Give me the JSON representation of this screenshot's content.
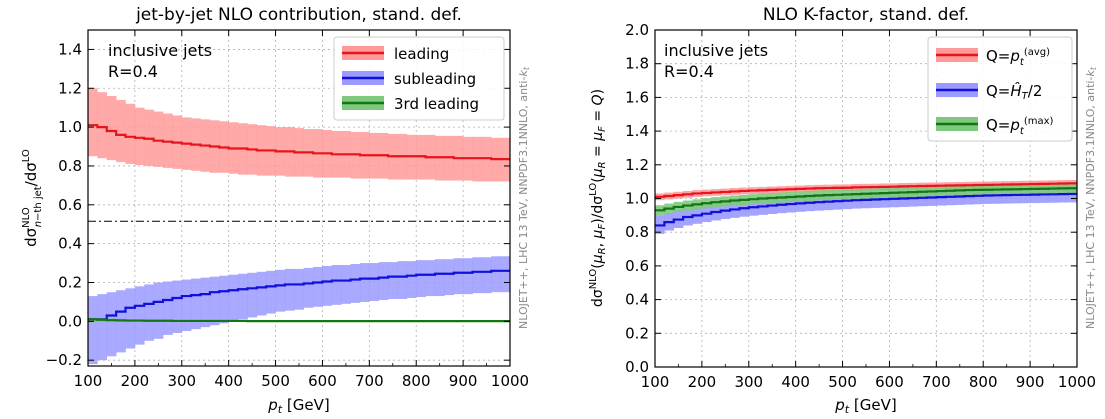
{
  "chart_data": [
    {
      "type": "line",
      "title": "jet-by-jet NLO contribution, stand. def.",
      "xlabel": "p_t [GeV]",
      "ylabel": "dσ^NLO_n−th jet/dσ^LO",
      "xlim": [
        100,
        1000
      ],
      "ylim": [
        -0.23,
        1.5
      ],
      "xticks": [
        "100",
        "200",
        "300",
        "400",
        "500",
        "600",
        "700",
        "800",
        "900",
        "1000"
      ],
      "yticks": [
        "−0.2",
        "0.0",
        "0.2",
        "0.4",
        "0.6",
        "0.8",
        "1.0",
        "1.2",
        "1.4"
      ],
      "grid": true,
      "legend_position": "top-right",
      "annotation": [
        "inclusive jets",
        "R=0.4"
      ],
      "side_label": "NLOJET++, LHC 13 TeV, NNPDF3.1NNLO, anti-k_t",
      "reference_line": 0.5,
      "x_edges": [
        100,
        120,
        140,
        160,
        180,
        200,
        220,
        240,
        260,
        280,
        300,
        320,
        340,
        360,
        380,
        400,
        420,
        440,
        460,
        480,
        500,
        520,
        540,
        560,
        580,
        600,
        620,
        640,
        660,
        680,
        700,
        720,
        740,
        760,
        780,
        800,
        820,
        840,
        860,
        880,
        900,
        920,
        940,
        960,
        980,
        1000
      ],
      "series": [
        {
          "name": "leading",
          "color": "#e8141b",
          "band": "#ff9a9a",
          "values": [
            1.01,
            1.0,
            0.98,
            0.96,
            0.95,
            0.945,
            0.94,
            0.93,
            0.925,
            0.92,
            0.915,
            0.91,
            0.905,
            0.9,
            0.895,
            0.89,
            0.89,
            0.885,
            0.88,
            0.88,
            0.875,
            0.875,
            0.87,
            0.87,
            0.865,
            0.865,
            0.86,
            0.86,
            0.86,
            0.855,
            0.855,
            0.855,
            0.85,
            0.85,
            0.85,
            0.85,
            0.845,
            0.845,
            0.845,
            0.84,
            0.84,
            0.84,
            0.84,
            0.835,
            0.835
          ],
          "lower": [
            0.85,
            0.84,
            0.83,
            0.82,
            0.81,
            0.805,
            0.8,
            0.795,
            0.79,
            0.785,
            0.78,
            0.775,
            0.77,
            0.765,
            0.765,
            0.76,
            0.755,
            0.755,
            0.75,
            0.75,
            0.75,
            0.745,
            0.745,
            0.745,
            0.74,
            0.74,
            0.74,
            0.74,
            0.735,
            0.735,
            0.735,
            0.735,
            0.73,
            0.73,
            0.73,
            0.73,
            0.73,
            0.725,
            0.725,
            0.725,
            0.725,
            0.72,
            0.72,
            0.72,
            0.72
          ],
          "upper": [
            1.2,
            1.18,
            1.16,
            1.14,
            1.12,
            1.1,
            1.09,
            1.08,
            1.07,
            1.06,
            1.05,
            1.045,
            1.04,
            1.035,
            1.03,
            1.025,
            1.02,
            1.015,
            1.01,
            1.005,
            1.0,
            1.0,
            0.995,
            0.99,
            0.99,
            0.985,
            0.98,
            0.98,
            0.975,
            0.975,
            0.97,
            0.97,
            0.965,
            0.965,
            0.96,
            0.96,
            0.96,
            0.955,
            0.955,
            0.955,
            0.95,
            0.95,
            0.95,
            0.945,
            0.945
          ]
        },
        {
          "name": "subleading",
          "color": "#1010d8",
          "band": "#9a9aff",
          "values": [
            0.01,
            0.01,
            0.03,
            0.05,
            0.07,
            0.08,
            0.09,
            0.1,
            0.11,
            0.12,
            0.13,
            0.135,
            0.14,
            0.15,
            0.155,
            0.16,
            0.165,
            0.17,
            0.175,
            0.18,
            0.185,
            0.19,
            0.19,
            0.195,
            0.2,
            0.205,
            0.21,
            0.21,
            0.215,
            0.22,
            0.22,
            0.225,
            0.23,
            0.23,
            0.235,
            0.24,
            0.24,
            0.245,
            0.245,
            0.25,
            0.25,
            0.255,
            0.255,
            0.26,
            0.26
          ],
          "lower": [
            -0.22,
            -0.2,
            -0.18,
            -0.16,
            -0.14,
            -0.12,
            -0.1,
            -0.09,
            -0.07,
            -0.06,
            -0.05,
            -0.04,
            -0.03,
            -0.02,
            -0.01,
            0.0,
            0.01,
            0.02,
            0.03,
            0.04,
            0.05,
            0.055,
            0.06,
            0.07,
            0.075,
            0.08,
            0.085,
            0.09,
            0.095,
            0.1,
            0.105,
            0.11,
            0.115,
            0.115,
            0.12,
            0.125,
            0.13,
            0.13,
            0.135,
            0.14,
            0.14,
            0.145,
            0.145,
            0.15,
            0.15
          ],
          "upper": [
            0.13,
            0.14,
            0.15,
            0.16,
            0.17,
            0.18,
            0.19,
            0.2,
            0.205,
            0.21,
            0.215,
            0.22,
            0.225,
            0.23,
            0.235,
            0.24,
            0.245,
            0.25,
            0.255,
            0.26,
            0.265,
            0.27,
            0.27,
            0.275,
            0.28,
            0.285,
            0.29,
            0.29,
            0.295,
            0.3,
            0.3,
            0.305,
            0.305,
            0.31,
            0.31,
            0.315,
            0.315,
            0.32,
            0.32,
            0.325,
            0.325,
            0.33,
            0.33,
            0.335,
            0.335
          ]
        },
        {
          "name": "3rd leading",
          "color": "#117711",
          "band": "#7fc97f",
          "values": [
            0.01,
            0.008,
            0.006,
            0.005,
            0.004,
            0.004,
            0.003,
            0.003,
            0.003,
            0.002,
            0.002,
            0.002,
            0.002,
            0.002,
            0.002,
            0.002,
            0.002,
            0.001,
            0.001,
            0.001,
            0.001,
            0.001,
            0.001,
            0.001,
            0.001,
            0.001,
            0.001,
            0.001,
            0.001,
            0.001,
            0.001,
            0.001,
            0.001,
            0.001,
            0.001,
            0.001,
            0.001,
            0.001,
            0.001,
            0.001,
            0.001,
            0.001,
            0.001,
            0.001,
            0.001
          ],
          "lower": [
            -0.005,
            -0.004,
            -0.003,
            -0.003,
            -0.003,
            -0.002,
            -0.002,
            -0.002,
            -0.002,
            -0.002,
            -0.002,
            -0.002,
            -0.002,
            -0.002,
            -0.002,
            -0.002,
            -0.002,
            -0.002,
            -0.002,
            -0.002,
            -0.002,
            -0.002,
            -0.002,
            -0.002,
            -0.002,
            -0.002,
            -0.002,
            -0.002,
            -0.002,
            -0.002,
            -0.002,
            -0.002,
            -0.002,
            -0.002,
            -0.002,
            -0.002,
            -0.002,
            -0.002,
            -0.002,
            -0.002,
            -0.002,
            -0.002,
            -0.002,
            -0.002,
            -0.002
          ],
          "upper": [
            0.02,
            0.018,
            0.015,
            0.012,
            0.01,
            0.009,
            0.008,
            0.007,
            0.006,
            0.006,
            0.005,
            0.005,
            0.005,
            0.004,
            0.004,
            0.004,
            0.004,
            0.004,
            0.004,
            0.004,
            0.004,
            0.004,
            0.004,
            0.004,
            0.004,
            0.004,
            0.004,
            0.004,
            0.004,
            0.004,
            0.004,
            0.004,
            0.004,
            0.004,
            0.004,
            0.004,
            0.004,
            0.004,
            0.004,
            0.004,
            0.004,
            0.004,
            0.004,
            0.004,
            0.004
          ]
        }
      ]
    },
    {
      "type": "line",
      "title": "NLO K-factor, stand. def.",
      "xlabel": "p_t [GeV]",
      "ylabel": "dσ^NLO(μR, μF)/dσ^LO(μR = μF = Q)",
      "xlim": [
        100,
        1000
      ],
      "ylim": [
        0.0,
        2.0
      ],
      "xticks": [
        "100",
        "200",
        "300",
        "400",
        "500",
        "600",
        "700",
        "800",
        "900",
        "1000"
      ],
      "yticks": [
        "0.0",
        "0.2",
        "0.4",
        "0.6",
        "0.8",
        "1.0",
        "1.2",
        "1.4",
        "1.6",
        "1.8",
        "2.0"
      ],
      "grid": true,
      "legend_position": "top-right",
      "annotation": [
        "inclusive jets",
        "R=0.4"
      ],
      "side_label": "NLOJET++, LHC 13 TeV, NNPDF3.1NNLO, anti-k_t",
      "x_edges": [
        100,
        120,
        140,
        160,
        180,
        200,
        220,
        240,
        260,
        280,
        300,
        320,
        340,
        360,
        380,
        400,
        420,
        440,
        460,
        480,
        500,
        520,
        540,
        560,
        580,
        600,
        620,
        640,
        660,
        680,
        700,
        720,
        740,
        760,
        780,
        800,
        820,
        840,
        860,
        880,
        900,
        920,
        940,
        960,
        980,
        1000
      ],
      "series": [
        {
          "name": "Q=p_t^(avg)",
          "color": "#e8141b",
          "band": "#ff9a9a",
          "values": [
            1.01,
            1.015,
            1.02,
            1.025,
            1.03,
            1.033,
            1.036,
            1.039,
            1.042,
            1.045,
            1.047,
            1.049,
            1.051,
            1.053,
            1.055,
            1.057,
            1.059,
            1.061,
            1.062,
            1.063,
            1.064,
            1.066,
            1.067,
            1.068,
            1.069,
            1.07,
            1.072,
            1.073,
            1.074,
            1.075,
            1.076,
            1.077,
            1.078,
            1.079,
            1.08,
            1.081,
            1.082,
            1.083,
            1.084,
            1.085,
            1.086,
            1.087,
            1.088,
            1.089,
            1.09
          ],
          "lower": [
            0.99,
            0.995,
            1.0,
            1.005,
            1.01,
            1.013,
            1.016,
            1.019,
            1.022,
            1.025,
            1.027,
            1.029,
            1.031,
            1.033,
            1.035,
            1.037,
            1.039,
            1.041,
            1.042,
            1.043,
            1.044,
            1.046,
            1.047,
            1.048,
            1.049,
            1.05,
            1.052,
            1.053,
            1.054,
            1.055,
            1.056,
            1.057,
            1.058,
            1.059,
            1.06,
            1.061,
            1.062,
            1.063,
            1.064,
            1.065,
            1.066,
            1.067,
            1.068,
            1.069,
            1.07
          ],
          "upper": [
            1.03,
            1.035,
            1.04,
            1.045,
            1.05,
            1.053,
            1.056,
            1.059,
            1.062,
            1.065,
            1.067,
            1.069,
            1.071,
            1.073,
            1.075,
            1.077,
            1.079,
            1.081,
            1.082,
            1.083,
            1.084,
            1.086,
            1.087,
            1.088,
            1.089,
            1.09,
            1.092,
            1.093,
            1.094,
            1.095,
            1.096,
            1.097,
            1.098,
            1.099,
            1.1,
            1.101,
            1.102,
            1.103,
            1.104,
            1.105,
            1.106,
            1.107,
            1.108,
            1.109,
            1.11
          ]
        },
        {
          "name": "Q=Ĥ_T/2",
          "color": "#1010d8",
          "band": "#9a9aff",
          "values": [
            0.84,
            0.86,
            0.875,
            0.89,
            0.9,
            0.91,
            0.92,
            0.928,
            0.935,
            0.942,
            0.948,
            0.953,
            0.958,
            0.963,
            0.967,
            0.971,
            0.975,
            0.978,
            0.981,
            0.984,
            0.987,
            0.99,
            0.992,
            0.994,
            0.996,
            0.998,
            1.0,
            1.002,
            1.004,
            1.006,
            1.008,
            1.01,
            1.012,
            1.014,
            1.016,
            1.018,
            1.019,
            1.02,
            1.021,
            1.022,
            1.023,
            1.024,
            1.025,
            1.026,
            1.027
          ],
          "lower": [
            0.79,
            0.81,
            0.825,
            0.84,
            0.85,
            0.86,
            0.87,
            0.878,
            0.885,
            0.892,
            0.898,
            0.903,
            0.908,
            0.913,
            0.917,
            0.921,
            0.925,
            0.928,
            0.931,
            0.934,
            0.937,
            0.94,
            0.942,
            0.944,
            0.946,
            0.948,
            0.95,
            0.952,
            0.954,
            0.956,
            0.958,
            0.96,
            0.962,
            0.964,
            0.966,
            0.968,
            0.969,
            0.97,
            0.971,
            0.972,
            0.973,
            0.974,
            0.975,
            0.976,
            0.977
          ],
          "upper": [
            0.9,
            0.915,
            0.93,
            0.94,
            0.95,
            0.958,
            0.965,
            0.972,
            0.978,
            0.984,
            0.989,
            0.994,
            0.998,
            1.002,
            1.006,
            1.009,
            1.012,
            1.015,
            1.018,
            1.021,
            1.024,
            1.026,
            1.028,
            1.03,
            1.032,
            1.034,
            1.036,
            1.038,
            1.04,
            1.042,
            1.044,
            1.045,
            1.046,
            1.047,
            1.048,
            1.049,
            1.05,
            1.051,
            1.052,
            1.053,
            1.054,
            1.055,
            1.056,
            1.057,
            1.058
          ]
        },
        {
          "name": "Q=p_t^(max)",
          "color": "#117711",
          "band": "#7fc97f",
          "values": [
            0.93,
            0.94,
            0.95,
            0.958,
            0.965,
            0.972,
            0.978,
            0.983,
            0.988,
            0.992,
            0.996,
            1.0,
            1.003,
            1.006,
            1.009,
            1.012,
            1.015,
            1.018,
            1.02,
            1.022,
            1.024,
            1.026,
            1.028,
            1.03,
            1.032,
            1.034,
            1.036,
            1.038,
            1.04,
            1.042,
            1.044,
            1.046,
            1.048,
            1.05,
            1.051,
            1.052,
            1.053,
            1.054,
            1.055,
            1.056,
            1.057,
            1.058,
            1.059,
            1.06,
            1.061
          ],
          "lower": [
            0.9,
            0.91,
            0.92,
            0.928,
            0.935,
            0.942,
            0.948,
            0.953,
            0.958,
            0.962,
            0.966,
            0.97,
            0.973,
            0.976,
            0.979,
            0.982,
            0.985,
            0.988,
            0.99,
            0.992,
            0.994,
            0.996,
            0.998,
            1.0,
            1.002,
            1.004,
            1.006,
            1.008,
            1.01,
            1.012,
            1.014,
            1.016,
            1.018,
            1.02,
            1.021,
            1.022,
            1.023,
            1.024,
            1.025,
            1.026,
            1.027,
            1.028,
            1.029,
            1.03,
            1.031
          ],
          "upper": [
            0.96,
            0.97,
            0.98,
            0.988,
            0.995,
            1.002,
            1.008,
            1.013,
            1.018,
            1.022,
            1.026,
            1.03,
            1.033,
            1.036,
            1.039,
            1.042,
            1.045,
            1.048,
            1.05,
            1.052,
            1.054,
            1.056,
            1.058,
            1.06,
            1.062,
            1.064,
            1.066,
            1.068,
            1.07,
            1.072,
            1.074,
            1.076,
            1.078,
            1.08,
            1.081,
            1.082,
            1.083,
            1.084,
            1.085,
            1.086,
            1.087,
            1.088,
            1.089,
            1.09,
            1.091
          ]
        }
      ]
    }
  ]
}
